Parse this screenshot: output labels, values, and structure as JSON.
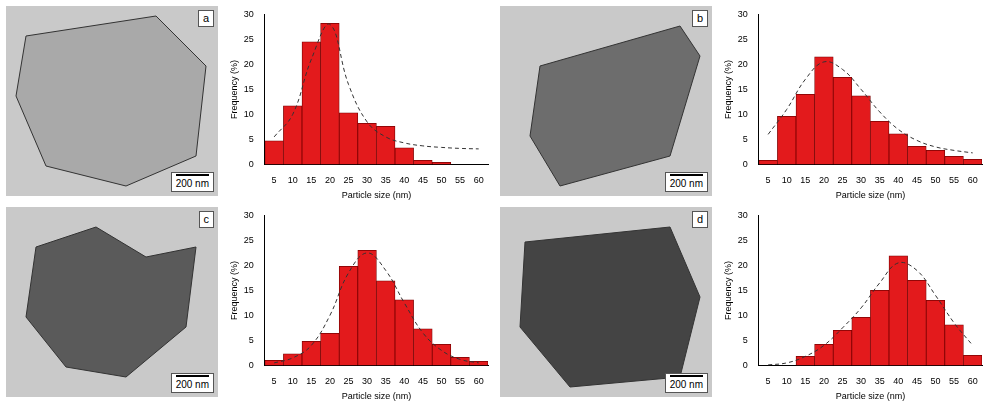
{
  "chart_data": [
    {
      "type": "bar",
      "panel": "a",
      "scale_bar": "200 nm",
      "xlabel": "Particle size (nm)",
      "ylabel": "Frequency (%)",
      "categories": [
        "5",
        "10",
        "15",
        "20",
        "25",
        "30",
        "35",
        "40",
        "45",
        "50",
        "55",
        "60"
      ],
      "series": [
        {
          "type": "bar",
          "color": "#e31a1c",
          "values": [
            4.7,
            11.7,
            24.5,
            28.2,
            10.3,
            8.2,
            7.6,
            3.3,
            0.8,
            0.4,
            0,
            0
          ]
        },
        {
          "type": "line",
          "color": "#333333",
          "line_style": "dashed",
          "values": [
            5.5,
            10,
            21,
            28,
            16,
            8.5,
            5.5,
            4.3,
            3.7,
            3.4,
            3.2,
            3.1
          ]
        }
      ],
      "ylim": [
        0,
        30
      ],
      "yticks": [
        0,
        5,
        10,
        15,
        20,
        25,
        30
      ],
      "grid": false
    },
    {
      "type": "bar",
      "panel": "b",
      "scale_bar": "200 nm",
      "xlabel": "Particle size (nm)",
      "ylabel": "Frequency (%)",
      "categories": [
        "5",
        "10",
        "15",
        "20",
        "25",
        "30",
        "35",
        "40",
        "45",
        "50",
        "55",
        "60"
      ],
      "series": [
        {
          "type": "bar",
          "color": "#e31a1c",
          "values": [
            0.8,
            9.6,
            14,
            21.5,
            17.4,
            13.7,
            8.6,
            6.1,
            3.6,
            2.8,
            1.6,
            1.0
          ]
        },
        {
          "type": "line",
          "color": "#333333",
          "line_style": "dashed",
          "values": [
            6,
            11,
            17,
            20.5,
            19,
            15,
            10.5,
            7,
            4.8,
            3.5,
            2.8,
            2.3
          ]
        }
      ],
      "ylim": [
        0,
        30
      ],
      "yticks": [
        0,
        5,
        10,
        15,
        20,
        25,
        30
      ],
      "grid": false
    },
    {
      "type": "bar",
      "panel": "c",
      "scale_bar": "200 nm",
      "xlabel": "Particle size (nm)",
      "ylabel": "Frequency (%)",
      "categories": [
        "5",
        "10",
        "15",
        "20",
        "25",
        "30",
        "35",
        "40",
        "45",
        "50",
        "55",
        "60"
      ],
      "series": [
        {
          "type": "bar",
          "color": "#e31a1c",
          "values": [
            1.0,
            2.3,
            4.8,
            6.4,
            19.8,
            23,
            16.9,
            13.1,
            7.3,
            4.2,
            1.6,
            0.8
          ]
        },
        {
          "type": "line",
          "color": "#333333",
          "line_style": "dashed",
          "values": [
            0.5,
            1.5,
            4,
            10,
            18.5,
            22.5,
            19,
            12.5,
            6.5,
            3,
            1.2,
            0.5
          ]
        }
      ],
      "ylim": [
        0,
        30
      ],
      "yticks": [
        0,
        5,
        10,
        15,
        20,
        25,
        30
      ],
      "grid": false
    },
    {
      "type": "bar",
      "panel": "d",
      "scale_bar": "200 nm",
      "xlabel": "Particle size (nm)",
      "ylabel": "Frequency (%)",
      "categories": [
        "5",
        "10",
        "15",
        "20",
        "25",
        "30",
        "35",
        "40",
        "45",
        "50",
        "55",
        "60"
      ],
      "series": [
        {
          "type": "bar",
          "color": "#e31a1c",
          "values": [
            0,
            0,
            1.8,
            4.2,
            7,
            9.6,
            15,
            21.9,
            17,
            13,
            8.1,
            2
          ]
        },
        {
          "type": "line",
          "color": "#333333",
          "line_style": "dashed",
          "values": [
            0.1,
            0.5,
            1.8,
            4,
            7.5,
            11.5,
            16.5,
            20.5,
            19,
            14,
            8.5,
            4
          ]
        }
      ],
      "ylim": [
        0,
        30
      ],
      "yticks": [
        0,
        5,
        10,
        15,
        20,
        25,
        30
      ],
      "grid": false
    }
  ]
}
